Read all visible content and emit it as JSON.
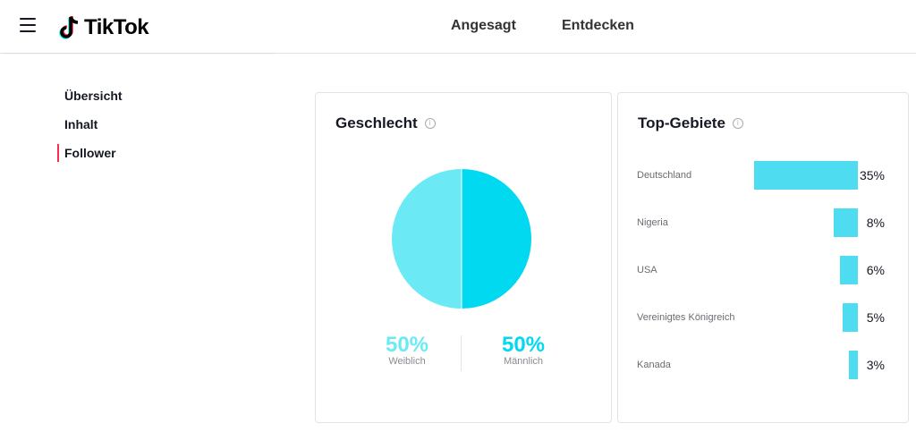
{
  "header": {
    "logo_text": "TikTok",
    "nav": [
      {
        "label": "Angesagt"
      },
      {
        "label": "Entdecken"
      }
    ]
  },
  "sidebar": {
    "items": [
      {
        "label": "Übersicht",
        "active": false
      },
      {
        "label": "Inhalt",
        "active": false
      },
      {
        "label": "Follower",
        "active": true
      }
    ],
    "active_color": "#fe2c55"
  },
  "gender_card": {
    "title": "Geschlecht",
    "female": {
      "percent_label": "50%",
      "label": "Weiblich",
      "value": 50,
      "color": "#6beaf6"
    },
    "male": {
      "percent_label": "50%",
      "label": "Männlich",
      "value": 50,
      "color": "#00d9ef"
    }
  },
  "regions_card": {
    "title": "Top-Gebiete",
    "bar_color": "#4edcf0",
    "items": [
      {
        "name": "Deutschland",
        "percent_label": "35%",
        "value": 35
      },
      {
        "name": "Nigeria",
        "percent_label": "8%",
        "value": 8
      },
      {
        "name": "USA",
        "percent_label": "6%",
        "value": 6
      },
      {
        "name": "Vereinigtes Königreich",
        "percent_label": "5%",
        "value": 5
      },
      {
        "name": "Kanada",
        "percent_label": "3%",
        "value": 3
      }
    ]
  }
}
